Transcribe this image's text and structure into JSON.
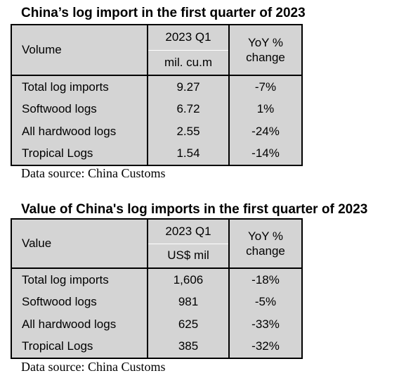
{
  "volume": {
    "title": "China’s log import in the first quarter of 2023",
    "header_label": "Volume",
    "header_period": "2023 Q1",
    "header_unit": "mil. cu.m",
    "header_yoy": "YoY % change",
    "rows": [
      {
        "label": "Total log imports",
        "value": "9.27",
        "yoy": "-7%"
      },
      {
        "label": "Softwood logs",
        "value": "6.72",
        "yoy": "1%"
      },
      {
        "label": "All hardwood logs",
        "value": "2.55",
        "yoy": "-24%"
      },
      {
        "label": "Tropical Logs",
        "value": "1.54",
        "yoy": "-14%"
      }
    ],
    "source": "Data source: China Customs"
  },
  "value": {
    "title": "Value of China's log imports in the first quarter of 2023",
    "header_label": "Value",
    "header_period": "2023 Q1",
    "header_unit": "US$ mil",
    "header_yoy": "YoY % change",
    "rows": [
      {
        "label": "Total log imports",
        "value": "1,606",
        "yoy": "-18%"
      },
      {
        "label": "Softwood logs",
        "value": "981",
        "yoy": "-5%"
      },
      {
        "label": "All hardwood logs",
        "value": "625",
        "yoy": "-33%"
      },
      {
        "label": "Tropical Logs",
        "value": "385",
        "yoy": "-32%"
      }
    ],
    "source": "Data source: China Customs"
  }
}
